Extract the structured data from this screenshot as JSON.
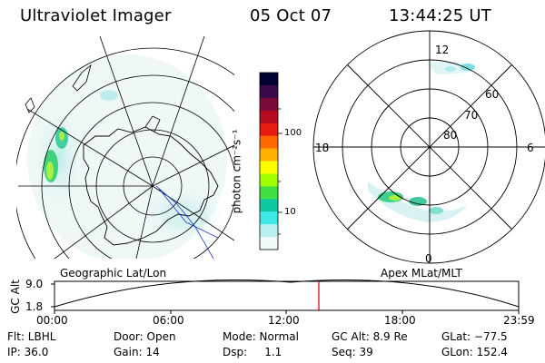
{
  "header": {
    "title": "Ultraviolet Imager",
    "date": "05 Oct 07",
    "time": "13:44:25 UT"
  },
  "left_map": {
    "caption": "Geographic Lat/Lon"
  },
  "right_map": {
    "caption": "Apex MLat/MLT",
    "mlt_labels": {
      "top": "12",
      "left": "18",
      "right": "6",
      "bottom": "0"
    },
    "lat_labels": [
      "60",
      "70",
      "80"
    ]
  },
  "colorbar": {
    "unit_label": "photon cm⁻²s⁻¹",
    "ticks": [
      "100",
      "10"
    ],
    "colors": [
      "#000033",
      "#3a0a4a",
      "#7a0a3a",
      "#b40b20",
      "#e81b10",
      "#ff6a00",
      "#ffb000",
      "#ffff00",
      "#a0ff00",
      "#40e040",
      "#10c8a0",
      "#40e8e8",
      "#b8f0f0",
      "#f0f8f8"
    ]
  },
  "altitude_track": {
    "y_label": "GC Alt",
    "y_ticks": [
      "9.0",
      "1.8"
    ],
    "x_ticks": [
      "00:00",
      "06:00",
      "12:00",
      "18:00",
      "23:59"
    ],
    "marker_color": "#d00000"
  },
  "footer": {
    "row1": {
      "filter": "Flt: LBHL",
      "door": "Door: Open",
      "mode": "Mode: Normal",
      "gc_alt": "GC Alt: 8.9 Re",
      "glat": "GLat: −77.5"
    },
    "row2": {
      "ip": "IP: 36.0",
      "gain": "Gain: 14",
      "dsp": "Dsp:     1.1",
      "seq": "Seq: 39",
      "glon": "GLon: 152.4"
    }
  }
}
